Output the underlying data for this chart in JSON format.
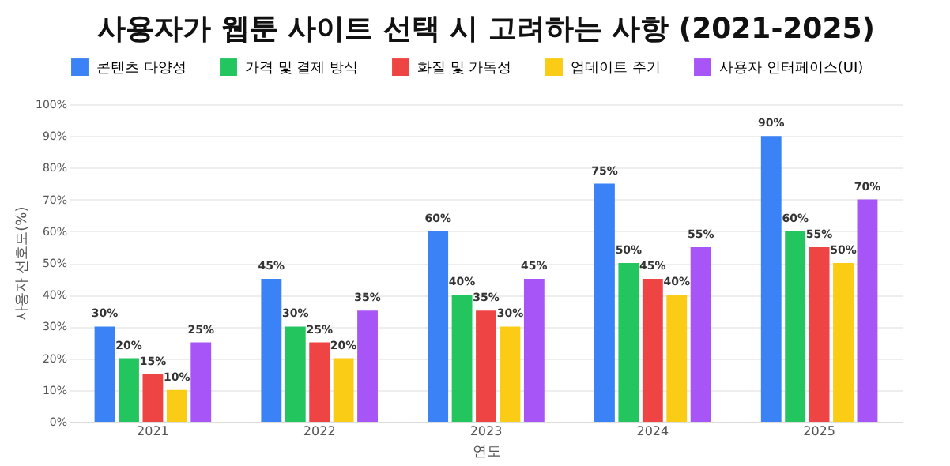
{
  "chart_data": {
    "type": "bar",
    "title": "사용자가 웹툰 사이트 선택 시 고려하는 사항 (2021-2025)",
    "xlabel": "연도",
    "ylabel": "사용자 선호도(%)",
    "categories": [
      "2021",
      "2022",
      "2023",
      "2024",
      "2025"
    ],
    "series": [
      {
        "name": "콘텐츠 다양성",
        "color": "#3b82f6",
        "values": [
          30,
          45,
          60,
          75,
          90
        ],
        "value_labels": [
          "30%",
          "45%",
          "60%",
          "75%",
          "90%"
        ]
      },
      {
        "name": "가격 및 결제 방식",
        "color": "#22c55e",
        "values": [
          20,
          30,
          40,
          50,
          60
        ],
        "value_labels": [
          "20%",
          "30%",
          "40%",
          "50%",
          "60%"
        ]
      },
      {
        "name": "화질 및 가독성",
        "color": "#ef4444",
        "values": [
          15,
          25,
          35,
          45,
          55
        ],
        "value_labels": [
          "15%",
          "25%",
          "35%",
          "45%",
          "55%"
        ]
      },
      {
        "name": "업데이트 주기",
        "color": "#facc15",
        "values": [
          10,
          20,
          30,
          40,
          50
        ],
        "value_labels": [
          "10%",
          "20%",
          "30%",
          "40%",
          "50%"
        ]
      },
      {
        "name": "사용자 인터페이스(UI)",
        "color": "#a855f7",
        "values": [
          25,
          35,
          45,
          55,
          70
        ],
        "value_labels": [
          "25%",
          "35%",
          "45%",
          "55%",
          "70%"
        ]
      }
    ],
    "ylim": [
      0,
      100
    ],
    "yticks": [
      {
        "value": 0,
        "label": "0%"
      },
      {
        "value": 10,
        "label": "10%"
      },
      {
        "value": 20,
        "label": "20%"
      },
      {
        "value": 30,
        "label": "30%"
      },
      {
        "value": 40,
        "label": "40%"
      },
      {
        "value": 50,
        "label": "50%"
      },
      {
        "value": 60,
        "label": "60%"
      },
      {
        "value": 70,
        "label": "70%"
      },
      {
        "value": 80,
        "label": "80%"
      },
      {
        "value": 90,
        "label": "90%"
      },
      {
        "value": 100,
        "label": "100%"
      }
    ],
    "grid": "y",
    "legend": "top"
  }
}
